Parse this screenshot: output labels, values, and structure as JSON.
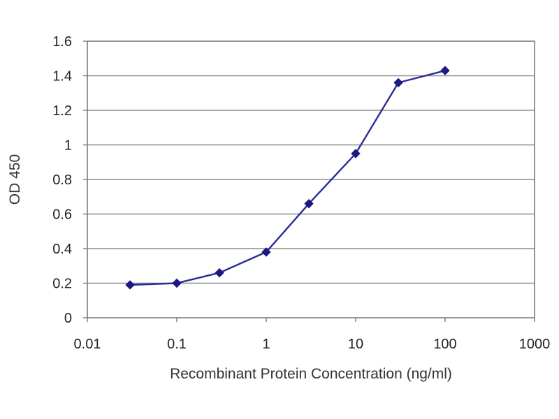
{
  "chart_data": {
    "type": "line",
    "title": "",
    "xlabel": "Recombinant Protein Concentration (ng/ml)",
    "ylabel": "OD 450",
    "x_scale": "log",
    "xlim": [
      0.01,
      1000
    ],
    "ylim": [
      0,
      1.6
    ],
    "x_ticks": [
      0.01,
      0.1,
      1,
      10,
      100,
      1000
    ],
    "x_tick_labels": [
      "0.01",
      "0.1",
      "1",
      "10",
      "100",
      "1000"
    ],
    "y_ticks": [
      0,
      0.2,
      0.4,
      0.6,
      0.8,
      1,
      1.2,
      1.4,
      1.6
    ],
    "y_tick_labels": [
      "0",
      "0.2",
      "0.4",
      "0.6",
      "0.8",
      "1",
      "1.2",
      "1.4",
      "1.6"
    ],
    "grid": "horizontal",
    "legend": "none",
    "series": [
      {
        "x": [
          0.03,
          0.1,
          0.3,
          1,
          3,
          10,
          30,
          100
        ],
        "y": [
          0.19,
          0.2,
          0.26,
          0.38,
          0.66,
          0.95,
          1.36,
          1.43
        ]
      }
    ],
    "colors": {
      "line": "#2b2b9a",
      "marker": "#1a1a80",
      "grid": "#8a8a8a",
      "frame": "#7a7a7a"
    }
  }
}
